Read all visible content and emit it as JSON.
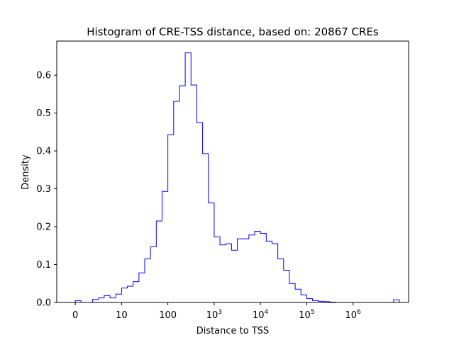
{
  "chart_data": {
    "type": "histogram",
    "title": "Histogram of CRE-TSS distance, based on: 20867 CREs",
    "xlabel": "Distance to TSS",
    "ylabel": "Density",
    "x_scale": "log10(distance + 1)",
    "xlim": [
      -0.4,
      7.2
    ],
    "ylim": [
      0,
      0.69
    ],
    "line_color": "#0000ff",
    "x_ticks": [
      {
        "value": 0,
        "base": "0",
        "exp": ""
      },
      {
        "value": 1,
        "base": "10",
        "exp": ""
      },
      {
        "value": 2,
        "base": "100",
        "exp": ""
      },
      {
        "value": 3,
        "base": "10",
        "exp": "3"
      },
      {
        "value": 4,
        "base": "10",
        "exp": "4"
      },
      {
        "value": 5,
        "base": "10",
        "exp": "5"
      },
      {
        "value": 6,
        "base": "10",
        "exp": "6"
      }
    ],
    "y_ticks": [
      "0.0",
      "0.1",
      "0.2",
      "0.3",
      "0.4",
      "0.5",
      "0.6"
    ],
    "y_tick_values": [
      0,
      0.1,
      0.2,
      0.3,
      0.4,
      0.5,
      0.6
    ],
    "bin_edges": [
      0,
      0.25,
      0.5,
      0.75,
      1.0,
      1.25,
      1.5,
      1.75,
      2.0,
      2.25,
      2.5,
      2.75,
      3.0,
      3.25,
      3.5,
      3.75,
      4.0,
      4.25,
      4.5,
      4.75,
      5.0,
      5.25,
      5.5,
      5.75,
      6.0,
      6.25,
      6.5,
      6.75,
      7.0
    ],
    "bin_values": [],
    "series": [
      {
        "x_edges": [
          0,
          0.125,
          0.25,
          0.375,
          0.5,
          0.625,
          0.75,
          0.875,
          1.0,
          1.125,
          1.25,
          1.375,
          1.5,
          1.625,
          1.75,
          1.875,
          2.0,
          2.125,
          2.25,
          2.375,
          2.5,
          2.625,
          2.75,
          2.875,
          3.0,
          3.125,
          3.25,
          3.375,
          3.5,
          3.625,
          3.75,
          3.875,
          4.0,
          4.125,
          4.25,
          4.375,
          4.5,
          4.625,
          4.75,
          4.875,
          5.0,
          5.125,
          5.25,
          5.375,
          5.5,
          5.625,
          5.75,
          5.875,
          6.0,
          6.125,
          6.25,
          6.375,
          6.5,
          6.625,
          6.75,
          6.875,
          7.0
        ],
        "values": [
          0.005,
          0.0,
          0.0,
          0.008,
          0.012,
          0.018,
          0.012,
          0.022,
          0.038,
          0.043,
          0.055,
          0.078,
          0.115,
          0.147,
          0.215,
          0.293,
          0.443,
          0.531,
          0.572,
          0.659,
          0.574,
          0.475,
          0.393,
          0.263,
          0.173,
          0.152,
          0.155,
          0.138,
          0.168,
          0.168,
          0.178,
          0.188,
          0.182,
          0.162,
          0.155,
          0.115,
          0.085,
          0.05,
          0.035,
          0.02,
          0.01,
          0.005,
          0.003,
          0.002,
          0.001,
          0.0,
          0.0,
          0.0,
          0.0,
          0.0,
          0.0,
          0.0,
          0.0,
          0.0,
          0.0,
          0.007
        ]
      }
    ],
    "grid": false,
    "legend": "none"
  }
}
